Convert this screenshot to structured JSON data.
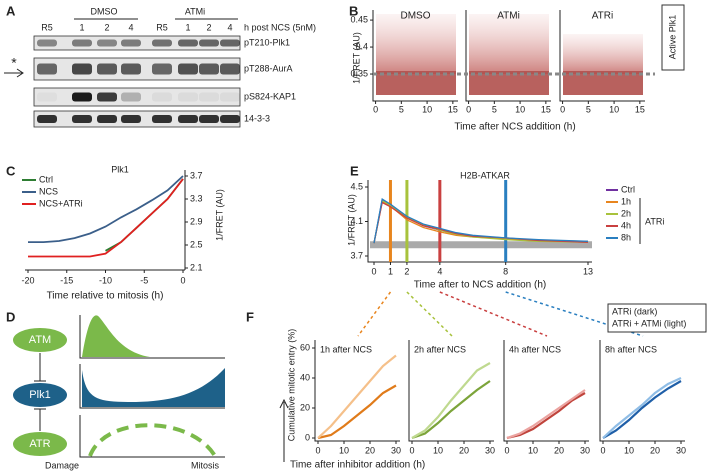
{
  "panels": {
    "A": {
      "label": "A",
      "groups": [
        "DMSO",
        "ATMi"
      ],
      "lanes": [
        "R5",
        "1",
        "2",
        "4",
        "R5",
        "1",
        "2",
        "4"
      ],
      "condition": "h post NCS (5nM)",
      "blots": [
        "pT210-Plk1",
        "pT288-AurA",
        "pS824-KAP1",
        "14-3-3"
      ],
      "marker": "*"
    },
    "B": {
      "label": "B",
      "titles": [
        "DMSO",
        "ATMi",
        "ATRi"
      ],
      "ylabel": "1/FRET (AU)",
      "xlabel": "Time after NCS addition (h)",
      "badge": "Active Plk1",
      "ylim": [
        0.3,
        0.465
      ],
      "yticks": [
        0.35,
        0.4,
        0.45
      ],
      "xlim": [
        -0.5,
        16
      ],
      "xticks": [
        0,
        5,
        10,
        15
      ],
      "threshold": 0.35
    },
    "C": {
      "label": "C",
      "title": "Plk1",
      "ylabel": "1/FRET (AU)",
      "xlabel": "Time relative to mitosis (h)",
      "x": [
        -20,
        -18,
        -16,
        -14,
        -12,
        -10,
        -8,
        -6,
        -4,
        -2,
        0
      ],
      "xlim": [
        -20,
        0
      ],
      "xticks": [
        -20,
        -15,
        -10,
        -5,
        0
      ],
      "ylim": [
        2.1,
        3.7
      ],
      "yticks": [
        2.1,
        2.5,
        2.9,
        3.3,
        3.7
      ],
      "series": [
        {
          "name": "Ctrl",
          "color": "#2e7d32",
          "values": [
            null,
            null,
            null,
            null,
            null,
            2.4,
            2.55,
            2.8,
            3.05,
            3.3,
            3.65
          ]
        },
        {
          "name": "NCS",
          "color": "#3b5f8a",
          "values": [
            2.55,
            2.55,
            2.57,
            2.62,
            2.7,
            2.82,
            2.98,
            3.12,
            3.28,
            3.45,
            3.7
          ]
        },
        {
          "name": "NCS+ATRi",
          "color": "#e02020",
          "values": [
            2.3,
            2.3,
            2.3,
            2.3,
            2.3,
            2.35,
            2.55,
            2.8,
            3.05,
            3.3,
            3.65
          ]
        }
      ]
    },
    "D": {
      "label": "D",
      "nodes": [
        "ATM",
        "Plk1",
        "ATR"
      ],
      "axis": [
        "Damage",
        "Mitosis"
      ]
    },
    "E": {
      "label": "E",
      "title": "H2B-ATKAR",
      "ylabel": "1/FRET (AU)",
      "xlabel": "Time after to NCS addition (h)",
      "group": "ATRi",
      "x": [
        0,
        0.5,
        1,
        2,
        3,
        4,
        5,
        6,
        8,
        10,
        13
      ],
      "xlim": [
        0,
        13
      ],
      "xticks": [
        0,
        1,
        2,
        4,
        8,
        13
      ],
      "ylim": [
        3.7,
        4.5
      ],
      "yticks": [
        3.7,
        4.1,
        4.5
      ],
      "threshold": 3.83,
      "series": [
        {
          "name": "Ctrl",
          "color": "#7030a0",
          "values": [
            3.85,
            4.35,
            4.3,
            4.15,
            4.05,
            4.0,
            3.95,
            3.93,
            3.9,
            3.88,
            3.86
          ]
        },
        {
          "name": "1h",
          "color": "#e8851e",
          "added_at": 1,
          "values": [
            3.85,
            4.33,
            4.28,
            4.12,
            4.03,
            3.98,
            3.94,
            3.92,
            3.9,
            3.88,
            3.87
          ]
        },
        {
          "name": "2h",
          "color": "#a8c23c",
          "added_at": 2,
          "values": [
            3.85,
            4.34,
            4.29,
            4.15,
            4.06,
            4.0,
            3.95,
            3.92,
            3.89,
            3.87,
            3.86
          ]
        },
        {
          "name": "4h",
          "color": "#c94040",
          "added_at": 4,
          "values": [
            3.85,
            4.32,
            4.27,
            4.14,
            4.05,
            4.01,
            3.96,
            3.93,
            3.91,
            3.88,
            3.86
          ]
        },
        {
          "name": "8h",
          "color": "#2a7fc0",
          "added_at": 8,
          "values": [
            3.85,
            4.36,
            4.3,
            4.16,
            4.07,
            4.02,
            3.97,
            3.94,
            3.91,
            3.89,
            3.87
          ]
        }
      ]
    },
    "F": {
      "label": "F",
      "ylabel": "Cumulative mitotic entry (%)",
      "xlabel": "Time after inhibitor addition (h)",
      "legend": [
        "ATRi (dark)",
        "ATRi + ATMi (light)"
      ],
      "x": [
        0,
        5,
        10,
        15,
        20,
        25,
        30
      ],
      "xlim": [
        0,
        30
      ],
      "xticks": [
        0,
        10,
        20,
        30
      ],
      "ylim": [
        0,
        60
      ],
      "yticks": [
        0,
        20,
        40,
        60
      ],
      "plots": [
        {
          "title": "1h after NCS",
          "series": [
            {
              "color": "#e07b1a",
              "values": [
                0,
                2,
                8,
                15,
                22,
                30,
                35
              ]
            },
            {
              "color": "#f5c08a",
              "values": [
                0,
                8,
                18,
                28,
                38,
                48,
                55
              ]
            }
          ]
        },
        {
          "title": "2h after NCS",
          "series": [
            {
              "color": "#7ca43a",
              "values": [
                0,
                3,
                10,
                18,
                25,
                32,
                38
              ]
            },
            {
              "color": "#bfd98f",
              "values": [
                0,
                5,
                14,
                25,
                35,
                45,
                50
              ]
            }
          ]
        },
        {
          "title": "4h after NCS",
          "series": [
            {
              "color": "#c0443c",
              "values": [
                0,
                2,
                6,
                12,
                18,
                25,
                30
              ]
            },
            {
              "color": "#eba3a0",
              "values": [
                0,
                3,
                8,
                14,
                20,
                26,
                32
              ]
            }
          ]
        },
        {
          "title": "8h after NCS",
          "series": [
            {
              "color": "#1f5fa8",
              "values": [
                0,
                5,
                12,
                20,
                27,
                33,
                38
              ]
            },
            {
              "color": "#8fbde6",
              "values": [
                0,
                8,
                15,
                22,
                30,
                36,
                40
              ]
            }
          ]
        }
      ]
    }
  }
}
